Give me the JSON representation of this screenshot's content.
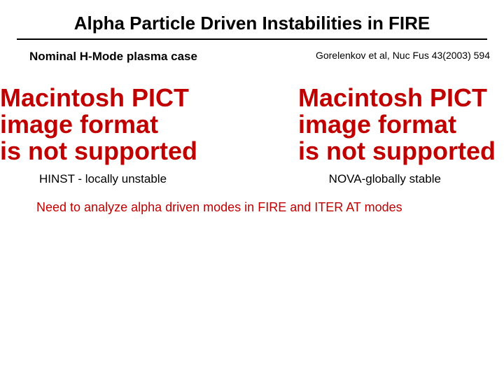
{
  "title": {
    "text": "Alpha Particle Driven Instabilities in FIRE",
    "fontsize": 26,
    "color": "#000000"
  },
  "rule_color": "#000000",
  "subheading": {
    "text": "Nominal H-Mode plasma case",
    "fontsize": 17,
    "color": "#000000"
  },
  "citation": {
    "text": "Gorelenkov et al, Nuc Fus 43(2003) 594",
    "fontsize": 14,
    "color": "#000000"
  },
  "placeholder_left": {
    "line1": "Macintosh PICT",
    "line2": "image format",
    "line3": "is not supported",
    "fontsize": 36,
    "color": "#c00000"
  },
  "placeholder_right": {
    "line1": "Macintosh PICT",
    "line2": "image format",
    "line3": "is not supported",
    "fontsize": 36,
    "color": "#c00000"
  },
  "caption_left": {
    "text": "HINST - locally unstable",
    "fontsize": 17,
    "color": "#000000"
  },
  "caption_right": {
    "text": "NOVA-globally stable",
    "fontsize": 17,
    "color": "#000000"
  },
  "conclusion": {
    "text": "Need to analyze alpha driven modes in FIRE and ITER AT modes",
    "fontsize": 18,
    "color": "#c00000"
  },
  "background_color": "#ffffff"
}
